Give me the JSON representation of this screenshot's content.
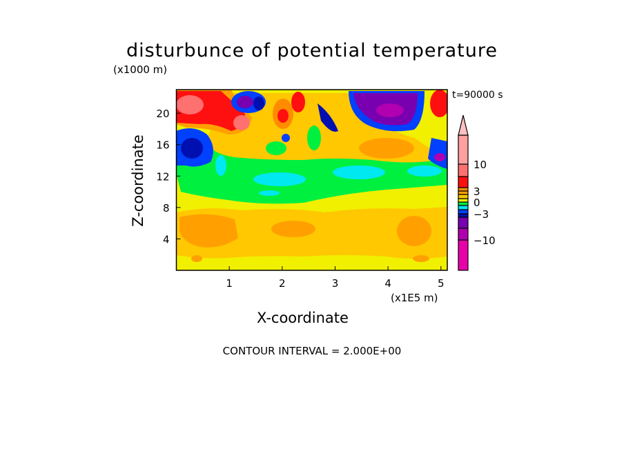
{
  "chart_data": {
    "type": "heatmap",
    "subtype": "filled-contour",
    "title": "disturbunce of potential temperature",
    "xlabel": "X-coordinate",
    "ylabel": "Z-coordinate",
    "x_unit": "(x1E5 m)",
    "y_unit": "(x1000 m)",
    "time_label": "t=90000 s",
    "footer": "CONTOUR INTERVAL = 2.000E+00",
    "xlim": [
      0,
      5.12
    ],
    "ylim": [
      0,
      23
    ],
    "xticks": [
      "1",
      "2",
      "3",
      "4",
      "5"
    ],
    "yticks": [
      "4",
      "8",
      "12",
      "16",
      "20"
    ],
    "xtick_values": [
      1,
      2,
      3,
      4,
      5
    ],
    "ytick_values": [
      4,
      8,
      12,
      16,
      20
    ],
    "colorbar": {
      "labels": [
        "10",
        "3",
        "0",
        "-3",
        "-10"
      ],
      "label_values": [
        10,
        3,
        0,
        -3,
        -10
      ],
      "levels": [
        -10,
        -6,
        -4,
        -3,
        -2,
        -1,
        0,
        1,
        2,
        3,
        4,
        6,
        10
      ],
      "colors": [
        "#e800a8",
        "#b000b0",
        "#7800b0",
        "#0010b0",
        "#0040ff",
        "#00e8f0",
        "#00f040",
        "#f0f000",
        "#ffc800",
        "#ffa000",
        "#ff8c00",
        "#ff1010",
        "#ff7070",
        "#ffa0a0"
      ],
      "extend_top_color": "#ffc0c0"
    },
    "field_summary": {
      "lower_layer_0_to_9km": "weak positive (0 to 4)",
      "mid_layer_9_to_14km": "near zero (-1 to 1)",
      "upper_layer_14_to_23km": "strong perturbations, -10 to >10; negative core near x=3.4-4.6, z=19-22"
    }
  }
}
